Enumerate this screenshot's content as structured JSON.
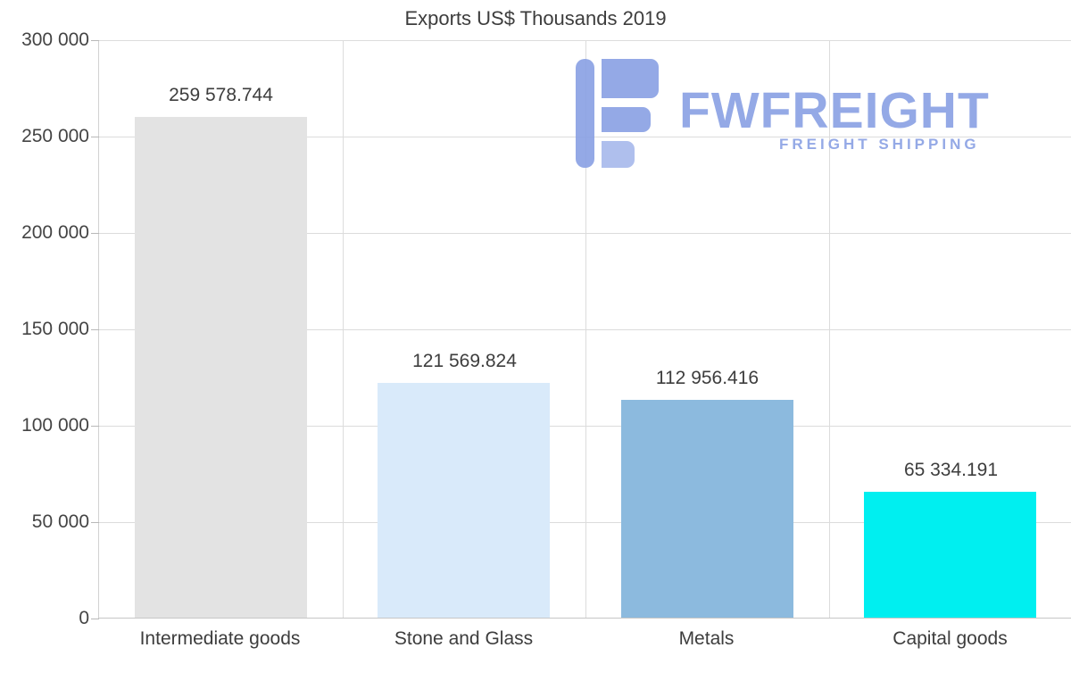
{
  "chart_data": {
    "type": "bar",
    "title": "Exports US$ Thousands 2019",
    "categories": [
      "Intermediate goods",
      "Stone and Glass",
      "Metals",
      "Capital goods"
    ],
    "values": [
      259578.744,
      121569.824,
      112956.416,
      65334.191
    ],
    "value_labels": [
      "259 578.744",
      "121 569.824",
      "112 956.416",
      "65 334.191"
    ],
    "bar_colors": [
      "#e3e3e3",
      "#d9eafa",
      "#8cbade",
      "#00eff0"
    ],
    "xlabel": "",
    "ylabel": "",
    "ylim": [
      0,
      300000
    ],
    "yticks": [
      0,
      50000,
      100000,
      150000,
      200000,
      250000,
      300000
    ],
    "ytick_labels": [
      "0",
      "50 000",
      "100 000",
      "150 000",
      "200 000",
      "250 000",
      "300 000"
    ],
    "grid": true,
    "legend": false
  },
  "watermark": {
    "brand": "FWFREIGHT",
    "tagline": "FREIGHT SHIPPING",
    "color": "#8ba2e4"
  }
}
